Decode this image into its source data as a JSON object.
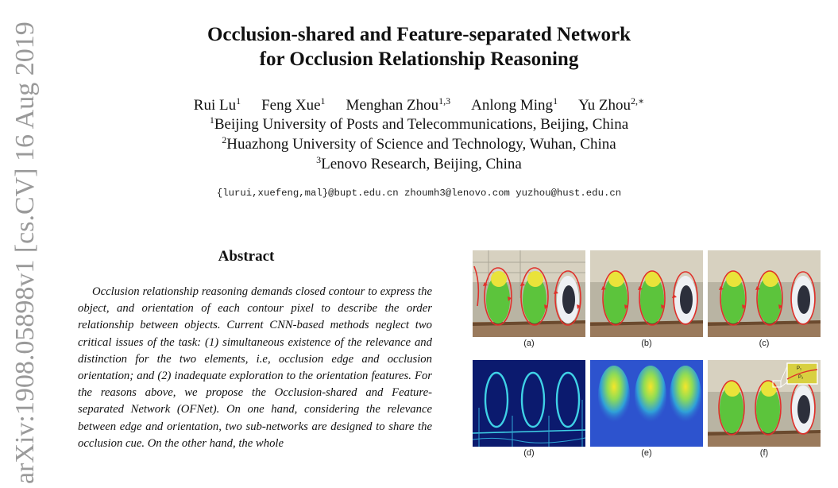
{
  "sidebar": {
    "arxiv_id": "arXiv:1908.05898v1",
    "category": "[cs.CV]",
    "date": "16 Aug 2019"
  },
  "paper": {
    "title_line1": "Occlusion-shared and Feature-separated Network",
    "title_line2": "for Occlusion Relationship Reasoning",
    "authors": [
      {
        "name": "Rui Lu",
        "sup": "1"
      },
      {
        "name": "Feng Xue",
        "sup": "1"
      },
      {
        "name": "Menghan Zhou",
        "sup": "1,3"
      },
      {
        "name": "Anlong Ming",
        "sup": "1"
      },
      {
        "name": "Yu Zhou",
        "sup": "2,∗"
      }
    ],
    "affiliations": [
      {
        "sup": "1",
        "text": "Beijing University of Posts and Telecommunications, Beijing, China"
      },
      {
        "sup": "2",
        "text": "Huazhong University of Science and Technology, Wuhan, China"
      },
      {
        "sup": "3",
        "text": "Lenovo Research, Beijing, China"
      }
    ],
    "emails": "{lurui,xuefeng,mal}@bupt.edu.cn zhoumh3@lenovo.com yuzhou@hust.edu.cn",
    "abstract_heading": "Abstract",
    "abstract_text": "Occlusion relationship reasoning demands closed contour to express the object, and orientation of each contour pixel to describe the order relationship between objects. Current CNN-based methods neglect two critical issues of the task: (1) simultaneous existence of the relevance and distinction for the two elements, i.e, occlusion edge and occlusion orientation; and (2) inadequate exploration to the orientation features. For the reasons above, we propose the Occlusion-shared and Feature-separated Network (OFNet). On one hand, considering the relevance between edge and orientation, two sub-networks are designed to share the occlusion cue. On the other hand, the whole"
  },
  "figure": {
    "panels": [
      {
        "label": "(a)",
        "kind": "photo"
      },
      {
        "label": "(b)",
        "kind": "photo"
      },
      {
        "label": "(c)",
        "kind": "photo"
      },
      {
        "label": "(d)",
        "kind": "edge-map"
      },
      {
        "label": "(e)",
        "kind": "heat-map"
      },
      {
        "label": "(f)",
        "kind": "photo-zoom"
      }
    ],
    "inset_labels": [
      "P₁",
      "P₂"
    ]
  }
}
